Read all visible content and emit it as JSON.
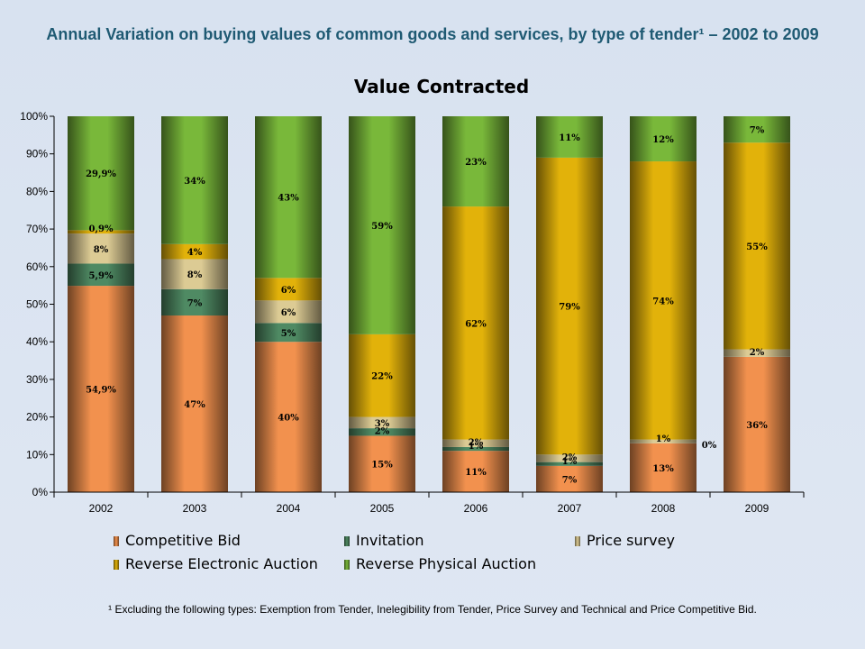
{
  "page": {
    "title": "Annual Variation on buying values of common goods and services, by type of tender¹ – 2002 to 2009",
    "footnote": "¹ Excluding the following types: Exemption from Tender, Inelegibility from Tender, Price Survey and Technical  and Price Competitive Bid."
  },
  "chart_data": {
    "type": "bar",
    "stacked": true,
    "title": "Value Contracted",
    "categories": [
      "2002",
      "2003",
      "2004",
      "2005",
      "2006",
      "2007",
      "2008",
      "2009"
    ],
    "ylim": [
      0,
      100
    ],
    "yticks": [
      "0%",
      "10%",
      "20%",
      "30%",
      "40%",
      "50%",
      "60%",
      "70%",
      "80%",
      "90%",
      "100%"
    ],
    "legend_position": "bottom",
    "series": [
      {
        "name": "Competitive Bid",
        "color": "#f2914e",
        "values": [
          54.9,
          47,
          40,
          15,
          11,
          7,
          13,
          36
        ],
        "labels": [
          "54,9%",
          "47%",
          "40%",
          "15%",
          "11%",
          "7%",
          "13%",
          "36%"
        ]
      },
      {
        "name": "Invitation",
        "color": "#4f8a63",
        "values": [
          5.9,
          7,
          5,
          2,
          1,
          1,
          0,
          0
        ],
        "labels": [
          "5,9%",
          "7%",
          "5%",
          "2%",
          "1%",
          "1%",
          "0%",
          ""
        ]
      },
      {
        "name": "Price survey",
        "color": "#dccb94",
        "values": [
          8,
          8,
          6,
          3,
          2,
          2,
          1,
          2
        ],
        "labels": [
          "8%",
          "8%",
          "6%",
          "3%",
          "2%",
          "2%",
          "1%",
          "2%"
        ]
      },
      {
        "name": "Reverse Electronic Auction",
        "color": "#e2b20a",
        "values": [
          0.9,
          4,
          6,
          22,
          62,
          79,
          74,
          55
        ],
        "labels": [
          "0,9%",
          "4%",
          "6%",
          "22%",
          "62%",
          "79%",
          "74%",
          "55%"
        ]
      },
      {
        "name": "Reverse Physical Auction",
        "color": "#79b83a",
        "values": [
          29.9,
          34,
          43,
          59,
          23,
          11,
          12,
          7
        ],
        "labels": [
          "29,9%",
          "34%",
          "43%",
          "59%",
          "23%",
          "11%",
          "12%",
          "7%"
        ]
      }
    ]
  }
}
